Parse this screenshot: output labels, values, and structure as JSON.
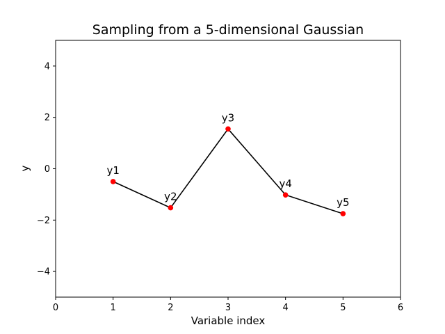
{
  "chart_data": {
    "type": "line",
    "title": "Sampling from a 5-dimensional Gaussian",
    "xlabel": "Variable index",
    "ylabel": "y",
    "xlim": [
      0,
      6
    ],
    "ylim": [
      -5,
      5
    ],
    "xticks": [
      0,
      1,
      2,
      3,
      4,
      5,
      6
    ],
    "yticks": [
      -4,
      -2,
      0,
      2,
      4
    ],
    "grid": false,
    "line_color": "#000000",
    "marker_color": "#ff0000",
    "series": [
      {
        "x": [
          1,
          2,
          3,
          4,
          5
        ],
        "y": [
          -0.5,
          -1.52,
          1.55,
          -1.02,
          -1.75
        ],
        "labels": [
          "y1",
          "y2",
          "y3",
          "y4",
          "y5"
        ]
      }
    ]
  }
}
